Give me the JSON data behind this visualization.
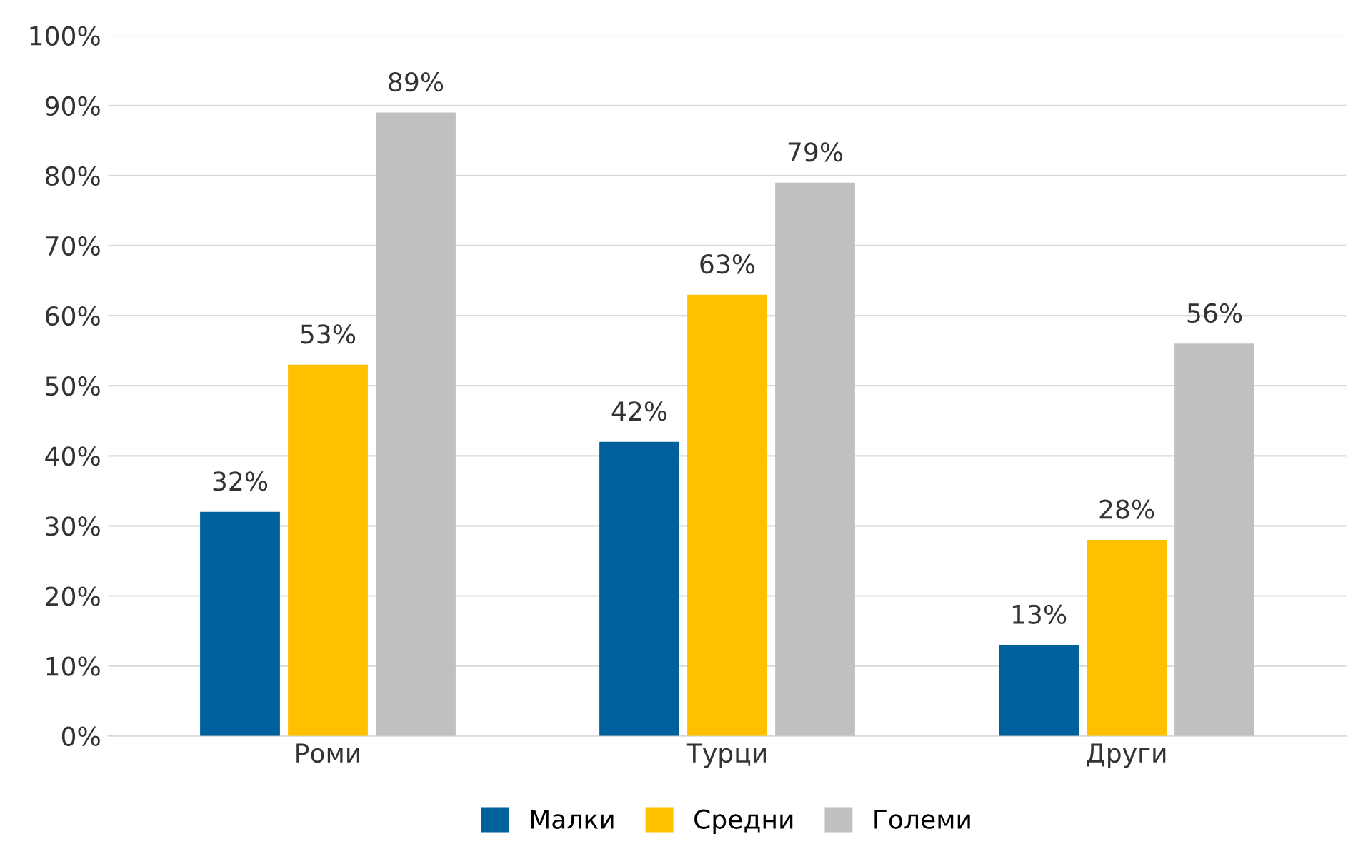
{
  "chart_data": {
    "type": "bar",
    "categories": [
      "Роми",
      "Турци",
      "Други"
    ],
    "series": [
      {
        "name": "Малки",
        "color": "#00609e",
        "values": [
          32,
          42,
          13
        ],
        "value_labels": [
          "32%",
          "42%",
          "13%"
        ]
      },
      {
        "name": "Средни",
        "color": "#ffc000",
        "values": [
          53,
          63,
          28
        ],
        "value_labels": [
          "53%",
          "63%",
          "28%"
        ]
      },
      {
        "name": "Големи",
        "color": "#c0c0c0",
        "values": [
          89,
          79,
          56
        ],
        "value_labels": [
          "89%",
          "79%",
          "56%"
        ]
      }
    ],
    "ylim": [
      0,
      100
    ],
    "yticks": [
      {
        "value": 0,
        "label": "0%"
      },
      {
        "value": 10,
        "label": "10%"
      },
      {
        "value": 20,
        "label": "20%"
      },
      {
        "value": 30,
        "label": "30%"
      },
      {
        "value": 40,
        "label": "40%"
      },
      {
        "value": 50,
        "label": "50%"
      },
      {
        "value": 60,
        "label": "60%"
      },
      {
        "value": 70,
        "label": "70%"
      },
      {
        "value": 80,
        "label": "80%"
      },
      {
        "value": 90,
        "label": "90%"
      },
      {
        "value": 100,
        "label": "100%"
      }
    ],
    "grid": "y",
    "legend": "bottom"
  }
}
